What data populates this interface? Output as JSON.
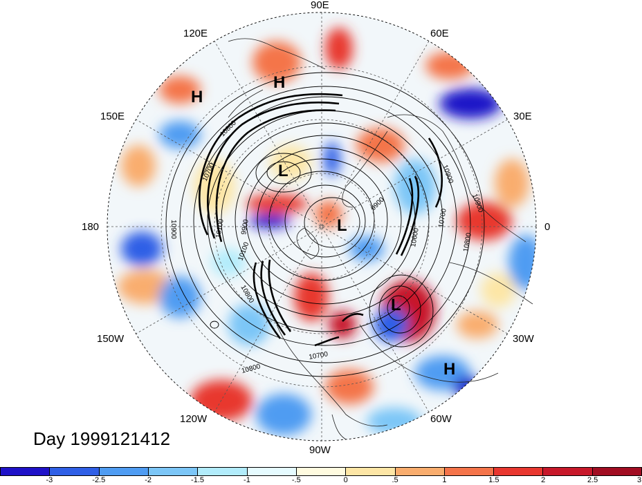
{
  "longitude_labels": [
    {
      "id": "lon-90e",
      "text": "90E"
    },
    {
      "id": "lon-60e",
      "text": "60E"
    },
    {
      "id": "lon-30e",
      "text": "30E"
    },
    {
      "id": "lon-0",
      "text": "0"
    },
    {
      "id": "lon-30w",
      "text": "30W"
    },
    {
      "id": "lon-60w",
      "text": "60W"
    },
    {
      "id": "lon-90w",
      "text": "90W"
    },
    {
      "id": "lon-120w",
      "text": "120W"
    },
    {
      "id": "lon-150w",
      "text": "150W"
    },
    {
      "id": "lon-180",
      "text": "180"
    },
    {
      "id": "lon-150e",
      "text": "150E"
    },
    {
      "id": "lon-120e",
      "text": "120E"
    }
  ],
  "pressure_systems": [
    {
      "id": "h1",
      "text": "H"
    },
    {
      "id": "h2",
      "text": "H"
    },
    {
      "id": "l1",
      "text": "L"
    },
    {
      "id": "l2",
      "text": "L"
    },
    {
      "id": "l3",
      "text": "L"
    },
    {
      "id": "h3",
      "text": "H"
    }
  ],
  "contour_labels": [
    "10800",
    "10700",
    "10900",
    "10100",
    "9900",
    "9900",
    "10600",
    "10700",
    "10800",
    "10900",
    "10800",
    "10100",
    "10700",
    "10800",
    "10900"
  ],
  "day_label": "Day 1999121412",
  "colorbar": {
    "colors": [
      "#1f12c8",
      "#2f5fe6",
      "#4f9cf2",
      "#7cc6f7",
      "#b2ecfb",
      "#e6fbff",
      "#fffbe0",
      "#fde6a6",
      "#f9ad6e",
      "#f4744a",
      "#e8372f",
      "#c7182a",
      "#a10d22"
    ],
    "ticks": [
      "-3",
      "-2.5",
      "-2",
      "-1.5",
      "-1",
      "-.5",
      "0",
      ".5",
      "1",
      "1.5",
      "2",
      "2.5",
      "3"
    ]
  }
}
